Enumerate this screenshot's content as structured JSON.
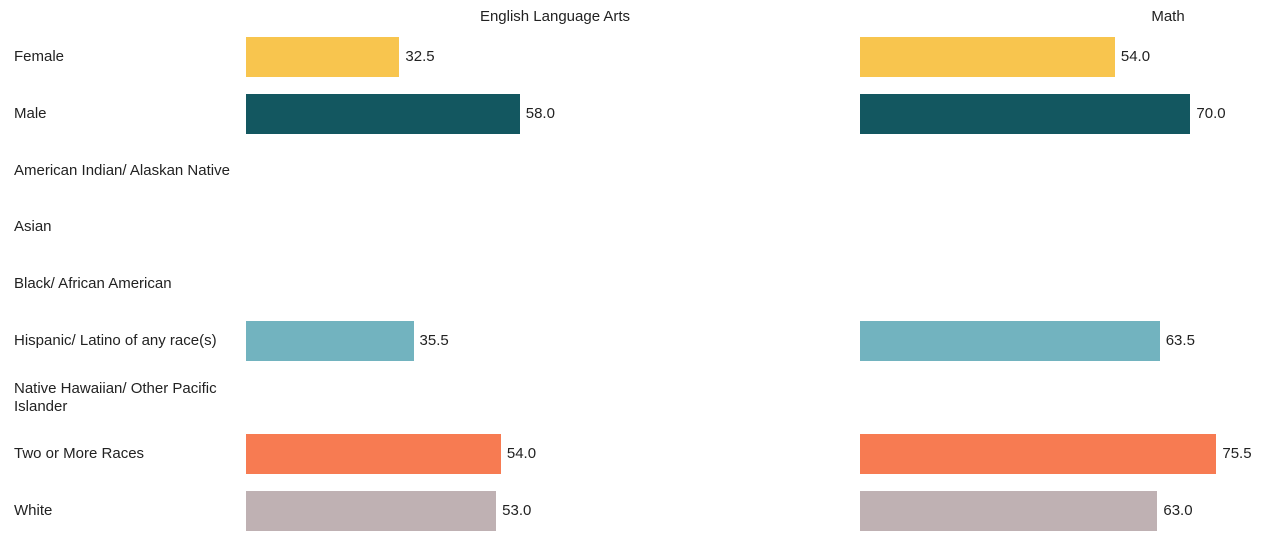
{
  "chart_data": {
    "type": "bar",
    "orientation": "horizontal",
    "categories": [
      "Female",
      "Male",
      "American Indian/ Alaskan Native",
      "Asian",
      "Black/ African American",
      "Hispanic/ Latino of any race(s)",
      "Native Hawaiian/ Other Pacific Islander",
      "Two or More Races",
      "White"
    ],
    "colors": [
      "#f8c54e",
      "#135760",
      null,
      null,
      null,
      "#72b3bf",
      null,
      "#f77b52",
      "#bfb1b3"
    ],
    "series": [
      {
        "name": "English Language Arts",
        "values": [
          32.5,
          58,
          null,
          null,
          null,
          35.5,
          null,
          54,
          53
        ],
        "value_labels": [
          "32.5",
          "58.0",
          null,
          null,
          null,
          "35.5",
          null,
          "54.0",
          "53.0"
        ]
      },
      {
        "name": "Math",
        "values": [
          54,
          70,
          null,
          null,
          null,
          63.5,
          null,
          75.5,
          63
        ],
        "value_labels": [
          "54.0",
          "70.0",
          null,
          null,
          null,
          "63.5",
          null,
          "75.5",
          "63.0"
        ]
      }
    ]
  }
}
